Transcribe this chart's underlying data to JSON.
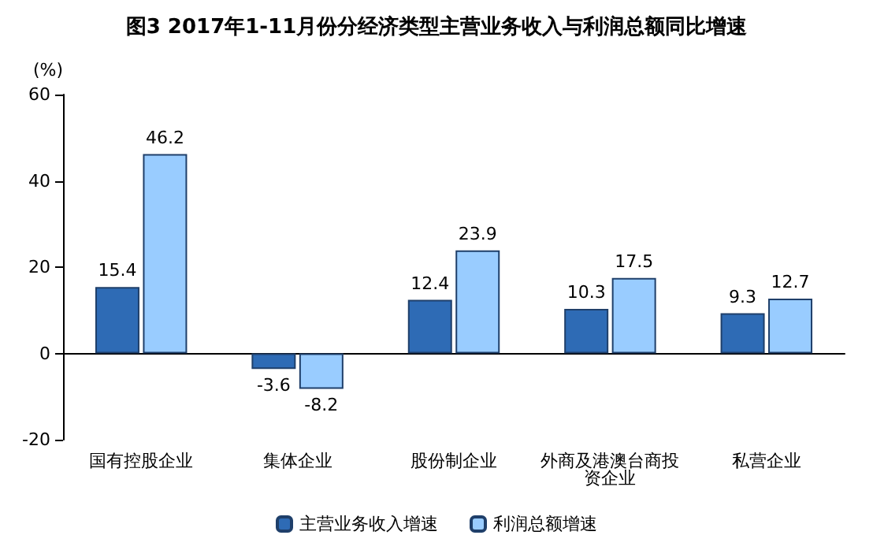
{
  "chart_data": {
    "type": "bar",
    "title": "图3 2017年1-11月份分经济类型主营业务收入与利润总额同比增速",
    "ylabel": "(%)",
    "categories": [
      "国有控股企业",
      "集体企业",
      "股份制企业",
      "外商及港澳台商投资企业",
      "私营企业"
    ],
    "series": [
      {
        "name": "主营业务收入增速",
        "color": "#2e6bb5",
        "values": [
          15.4,
          -3.6,
          12.4,
          10.3,
          9.3
        ]
      },
      {
        "name": "利润总额增速",
        "color": "#99ccff",
        "values": [
          46.2,
          -8.2,
          23.9,
          17.5,
          12.7
        ]
      }
    ],
    "ylim": [
      -20,
      60
    ],
    "yticks": [
      -20,
      0,
      20,
      40,
      60
    ],
    "data_labels": true,
    "legend": "bottom"
  }
}
